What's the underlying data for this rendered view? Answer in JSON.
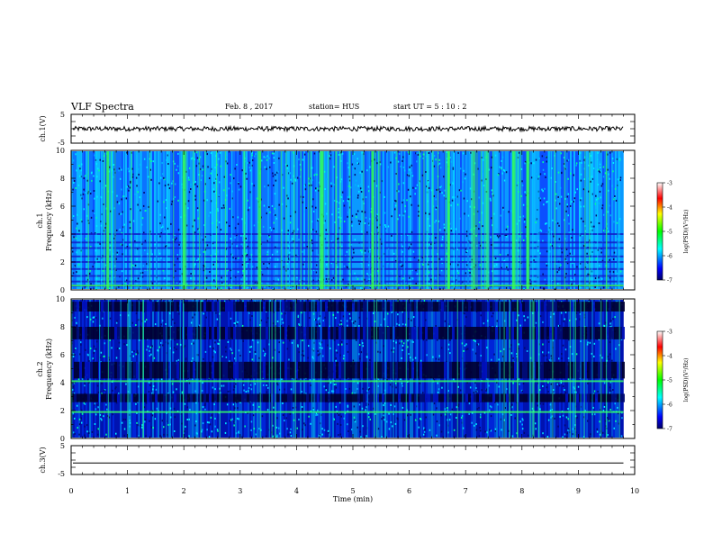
{
  "header": {
    "title": "VLF Spectra",
    "date": "Feb. 8 , 2017",
    "station": "station= HUS",
    "start_time": "start UT =  5 : 10 : 2"
  },
  "chart_data": [
    {
      "name": "ch1-waveform",
      "type": "line",
      "ylabel": "ch.1(V)",
      "ylim": [
        -5,
        5
      ],
      "yticks": [
        "5",
        "-5"
      ],
      "xlim": [
        0,
        10
      ],
      "x_end_of_data": 9.8,
      "mean": 0,
      "noise_amplitude": 0.8,
      "color": "#000000"
    },
    {
      "name": "ch1-spectrogram",
      "type": "heatmap",
      "ylabel": "ch.1 Frequency (kHz)",
      "ylim": [
        0,
        10
      ],
      "yticks": [
        "0",
        "2",
        "4",
        "6",
        "8",
        "10"
      ],
      "xlim": [
        0,
        10
      ],
      "x_end_of_data": 9.8,
      "colorbar": {
        "label": "log(PSD)(V²/Hz)",
        "range": [
          -7,
          -3
        ],
        "ticks": [
          "-3",
          "-4",
          "-5",
          "-6",
          "-7"
        ]
      },
      "horizontal_lines_khz": [
        0.3,
        0.6,
        1.0,
        1.5,
        2.0,
        2.4,
        3.0,
        3.4,
        4.0
      ],
      "strong_bursts_min": [
        0.65,
        2.0,
        3.35,
        4.45,
        5.35,
        6.7,
        7.85,
        8.1
      ]
    },
    {
      "name": "ch2-spectrogram",
      "type": "heatmap",
      "ylabel": "ch.2 Frequency (kHz)",
      "ylim": [
        0,
        10
      ],
      "yticks": [
        "0",
        "2",
        "4",
        "6",
        "8",
        "10"
      ],
      "xlim": [
        0,
        10
      ],
      "x_end_of_data": 9.8,
      "colorbar": {
        "label": "log(PSD)(V²/Hz)",
        "range": [
          -7,
          -3
        ],
        "ticks": [
          "-3",
          "-4",
          "-5",
          "-6",
          "-7"
        ]
      },
      "dark_bands_khz": [
        [
          9.1,
          9.8
        ],
        [
          7.1,
          8.0
        ],
        [
          4.3,
          5.5
        ],
        [
          2.6,
          3.2
        ]
      ],
      "green_lines_khz": [
        1.9,
        4.1
      ]
    },
    {
      "name": "ch3-waveform",
      "type": "line",
      "ylabel": "ch.3(V)",
      "ylim": [
        -5,
        5
      ],
      "yticks": [
        "5",
        "-5"
      ],
      "xlim": [
        0,
        10
      ],
      "x_end_of_data": 9.8,
      "value": -1.0,
      "color": "#000000"
    }
  ],
  "x_axis": {
    "label": "Time (min)",
    "ticks": [
      "0",
      "1",
      "2",
      "3",
      "4",
      "5",
      "6",
      "7",
      "8",
      "9",
      "10"
    ]
  }
}
